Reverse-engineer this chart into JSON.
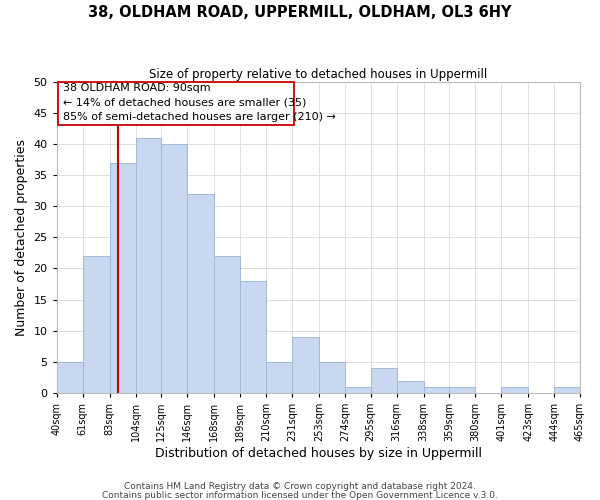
{
  "title1": "38, OLDHAM ROAD, UPPERMILL, OLDHAM, OL3 6HY",
  "title2": "Size of property relative to detached houses in Uppermill",
  "xlabel": "Distribution of detached houses by size in Uppermill",
  "ylabel": "Number of detached properties",
  "bar_edges": [
    40,
    61,
    83,
    104,
    125,
    146,
    168,
    189,
    210,
    231,
    253,
    274,
    295,
    316,
    338,
    359,
    380,
    401,
    423,
    444,
    465
  ],
  "bar_heights": [
    5,
    22,
    37,
    41,
    40,
    32,
    22,
    18,
    5,
    9,
    5,
    1,
    4,
    2,
    1,
    1,
    0,
    1,
    0,
    1,
    1
  ],
  "bar_color": "#c8d8f0",
  "bar_edgecolor": "#a0b8d8",
  "vline_x": 90,
  "vline_color": "#cc0000",
  "ann_line1": "38 OLDHAM ROAD: 90sqm",
  "ann_line2": "← 14% of detached houses are smaller (35)",
  "ann_line3": "85% of semi-detached houses are larger (210) →",
  "ylim": [
    0,
    50
  ],
  "yticks": [
    0,
    5,
    10,
    15,
    20,
    25,
    30,
    35,
    40,
    45,
    50
  ],
  "tick_labels": [
    "40sqm",
    "61sqm",
    "83sqm",
    "104sqm",
    "125sqm",
    "146sqm",
    "168sqm",
    "189sqm",
    "210sqm",
    "231sqm",
    "253sqm",
    "274sqm",
    "295sqm",
    "316sqm",
    "338sqm",
    "359sqm",
    "380sqm",
    "401sqm",
    "423sqm",
    "444sqm",
    "465sqm"
  ],
  "footer1": "Contains HM Land Registry data © Crown copyright and database right 2024.",
  "footer2": "Contains public sector information licensed under the Open Government Licence v.3.0.",
  "bg_color": "#ffffff",
  "grid_color": "#e0e0e0"
}
